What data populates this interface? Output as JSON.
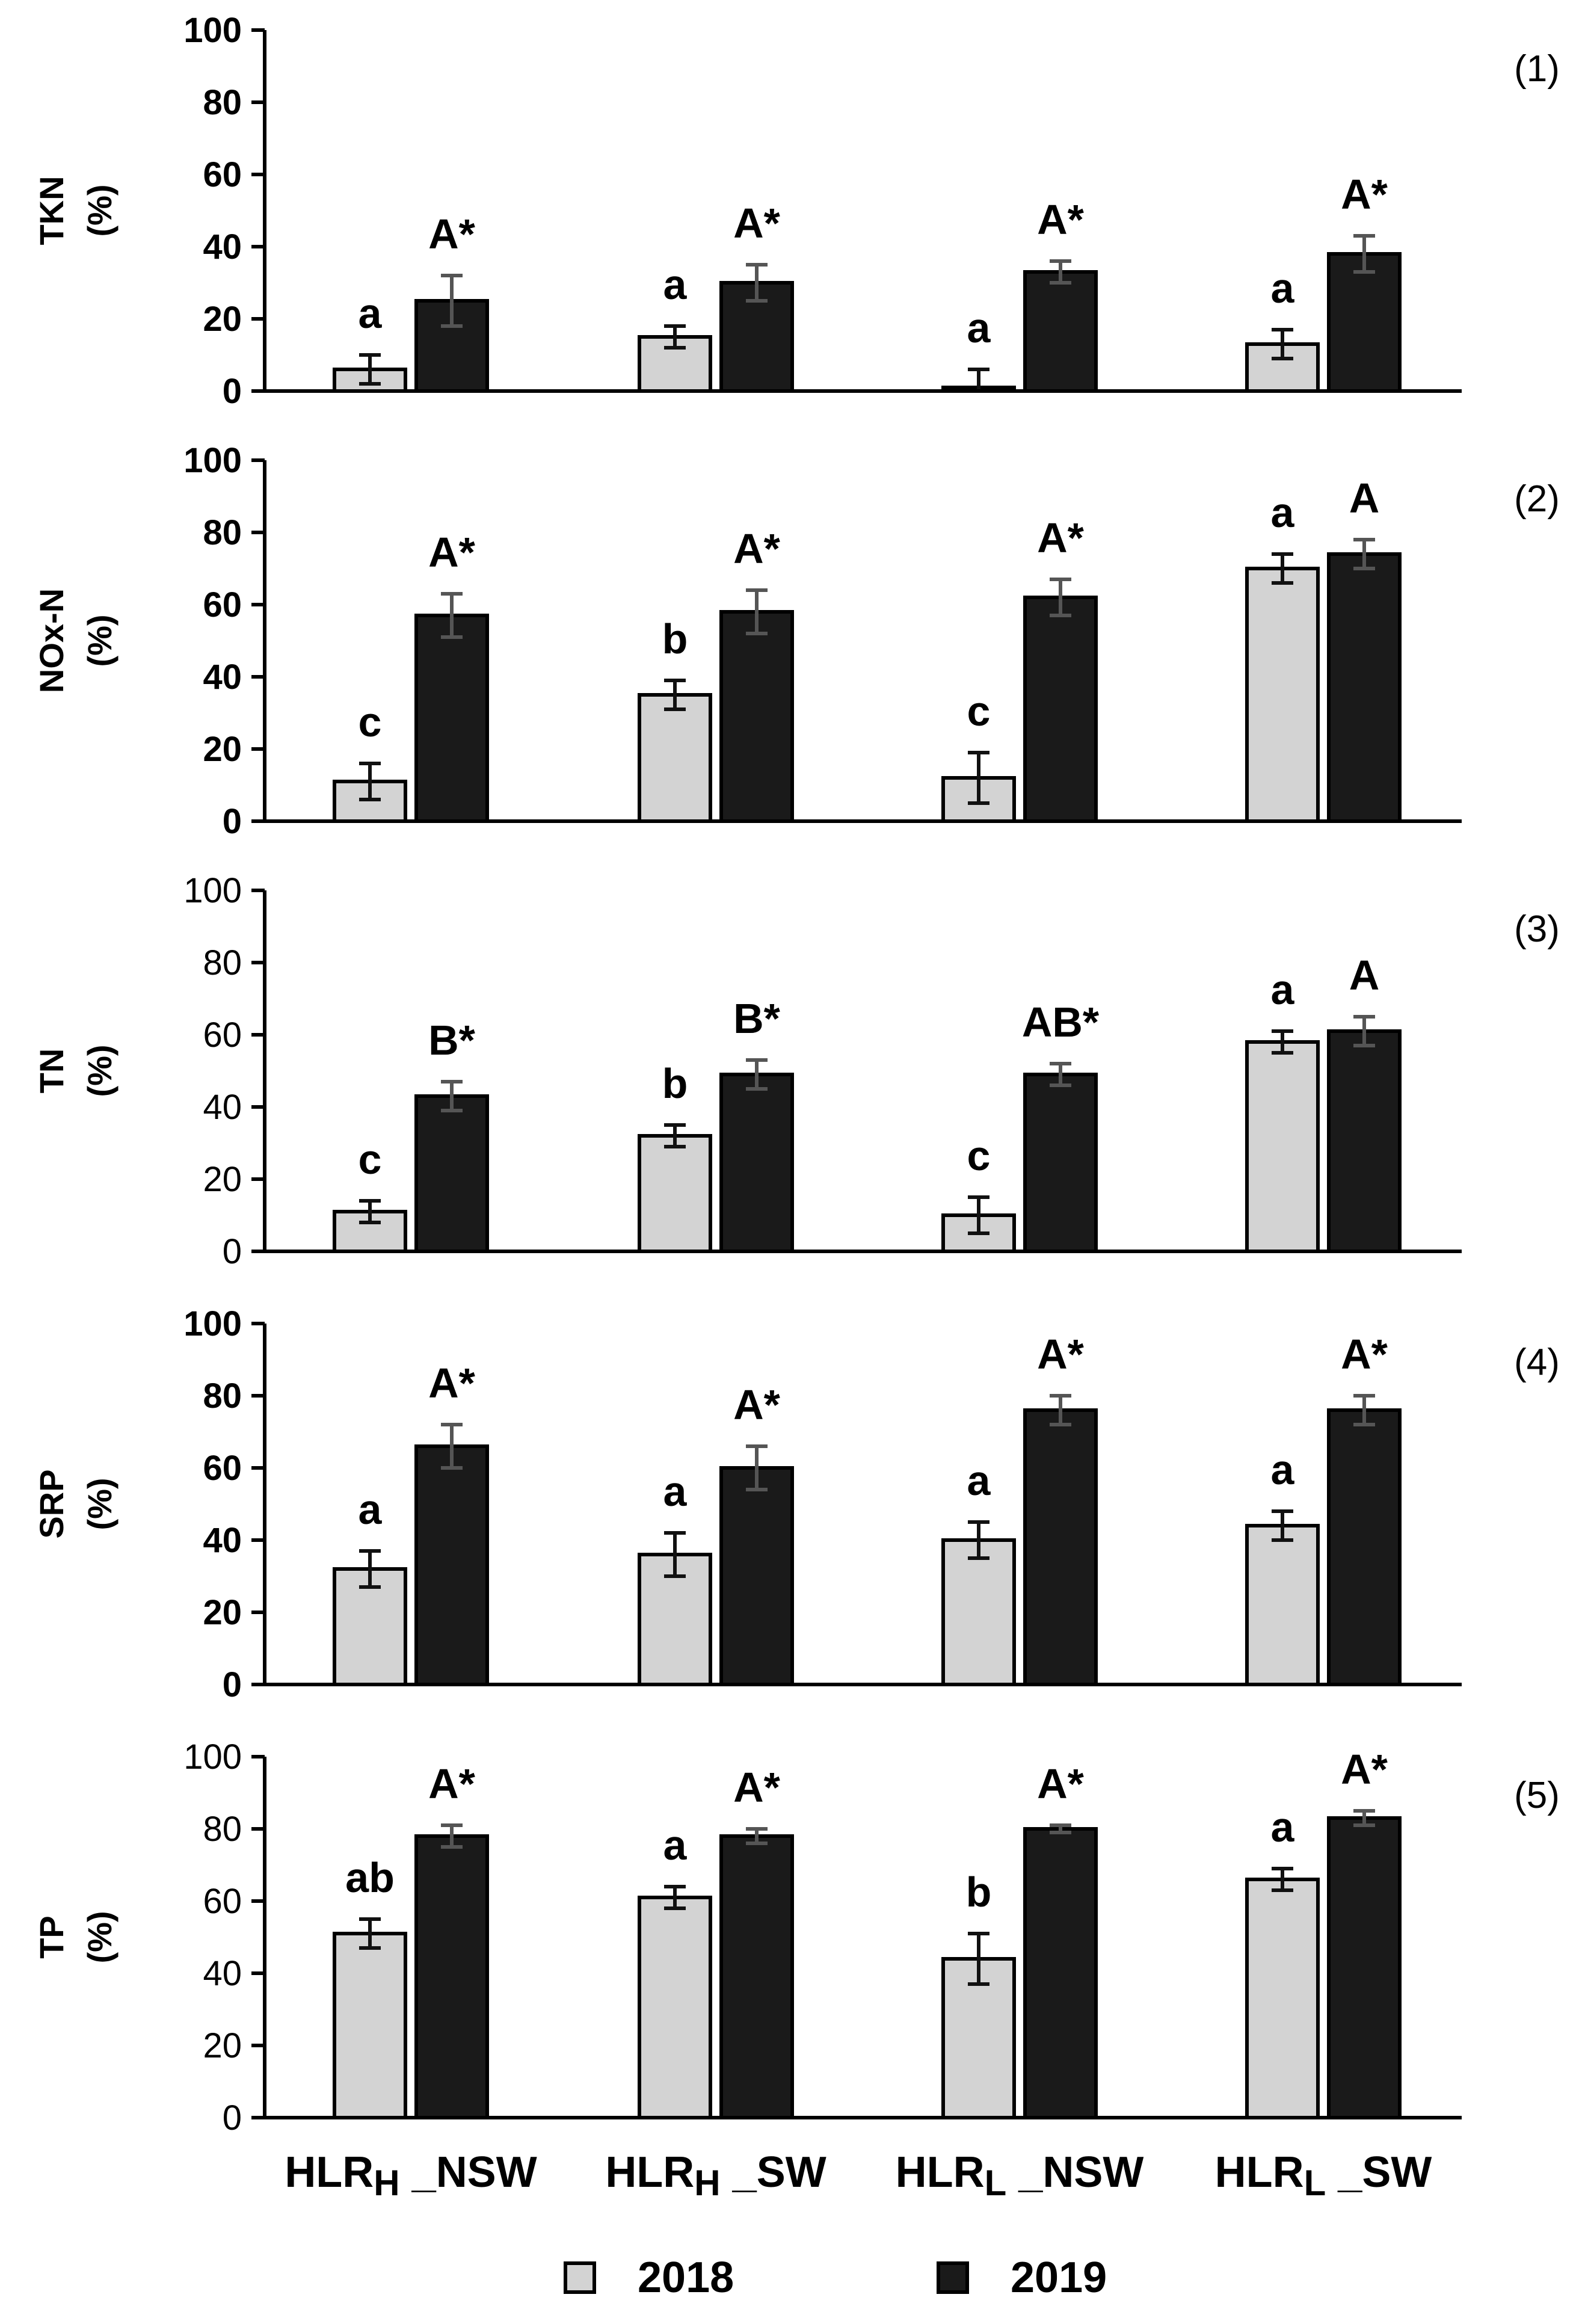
{
  "chart_data": [
    {
      "type": "bar",
      "panel_label": "(1)",
      "ylabel_line1": "TKN",
      "ylabel_line2": "(%)",
      "ylim": [
        0,
        100
      ],
      "yticks": [
        "0",
        "20",
        "40",
        "60",
        "80",
        "100"
      ],
      "bold_ticks": true,
      "categories": [
        "HLRH _NSW",
        "HLRH _SW",
        "HLRL _NSW",
        "HLRL _SW"
      ],
      "series": [
        {
          "name": "2018",
          "values": [
            6,
            15,
            1,
            13
          ],
          "errors": [
            4,
            3,
            5,
            4
          ],
          "letters": [
            "a",
            "a",
            "a",
            "a"
          ]
        },
        {
          "name": "2019",
          "values": [
            25,
            30,
            33,
            38
          ],
          "errors": [
            7,
            5,
            3,
            5
          ],
          "letters": [
            "A*",
            "A*",
            "A*",
            "A*"
          ]
        }
      ]
    },
    {
      "type": "bar",
      "panel_label": "(2)",
      "ylabel_line1": "NOx-N",
      "ylabel_line2": "(%)",
      "ylim": [
        0,
        100
      ],
      "yticks": [
        "0",
        "20",
        "40",
        "60",
        "80",
        "100"
      ],
      "bold_ticks": true,
      "categories": [
        "HLRH _NSW",
        "HLRH _SW",
        "HLRL _NSW",
        "HLRL _SW"
      ],
      "series": [
        {
          "name": "2018",
          "values": [
            11,
            35,
            12,
            70
          ],
          "errors": [
            5,
            4,
            7,
            4
          ],
          "letters": [
            "c",
            "b",
            "c",
            "a"
          ]
        },
        {
          "name": "2019",
          "values": [
            57,
            58,
            62,
            74
          ],
          "errors": [
            6,
            6,
            5,
            4
          ],
          "letters": [
            "A*",
            "A*",
            "A*",
            "A"
          ]
        }
      ]
    },
    {
      "type": "bar",
      "panel_label": "(3)",
      "ylabel_line1": "TN",
      "ylabel_line2": "(%)",
      "ylim": [
        0,
        100
      ],
      "yticks": [
        "0",
        "20",
        "40",
        "60",
        "80",
        "100"
      ],
      "bold_ticks": false,
      "categories": [
        "HLRH _NSW",
        "HLRH _SW",
        "HLRL _NSW",
        "HLRL _SW"
      ],
      "series": [
        {
          "name": "2018",
          "values": [
            11,
            32,
            10,
            58
          ],
          "errors": [
            3,
            3,
            5,
            3
          ],
          "letters": [
            "c",
            "b",
            "c",
            "a"
          ]
        },
        {
          "name": "2019",
          "values": [
            43,
            49,
            49,
            61
          ],
          "errors": [
            4,
            4,
            3,
            4
          ],
          "letters": [
            "B*",
            "B*",
            "AB*",
            "A"
          ]
        }
      ]
    },
    {
      "type": "bar",
      "panel_label": "(4)",
      "ylabel_line1": "SRP",
      "ylabel_line2": "(%)",
      "ylim": [
        0,
        100
      ],
      "yticks": [
        "0",
        "20",
        "40",
        "60",
        "80",
        "100"
      ],
      "bold_ticks": true,
      "categories": [
        "HLRH _NSW",
        "HLRH _SW",
        "HLRL _NSW",
        "HLRL _SW"
      ],
      "series": [
        {
          "name": "2018",
          "values": [
            32,
            36,
            40,
            44
          ],
          "errors": [
            5,
            6,
            5,
            4
          ],
          "letters": [
            "a",
            "a",
            "a",
            "a"
          ]
        },
        {
          "name": "2019",
          "values": [
            66,
            60,
            76,
            76
          ],
          "errors": [
            6,
            6,
            4,
            4
          ],
          "letters": [
            "A*",
            "A*",
            "A*",
            "A*"
          ]
        }
      ]
    },
    {
      "type": "bar",
      "panel_label": "(5)",
      "ylabel_line1": "TP",
      "ylabel_line2": "(%)",
      "ylim": [
        0,
        100
      ],
      "yticks": [
        "0",
        "20",
        "40",
        "60",
        "80",
        "100"
      ],
      "bold_ticks": false,
      "categories": [
        "HLRH _NSW",
        "HLRH _SW",
        "HLRL _NSW",
        "HLRL _SW"
      ],
      "series": [
        {
          "name": "2018",
          "values": [
            51,
            61,
            44,
            66
          ],
          "errors": [
            4,
            3,
            7,
            3
          ],
          "letters": [
            "ab",
            "a",
            "b",
            "a"
          ]
        },
        {
          "name": "2019",
          "values": [
            78,
            78,
            80,
            83
          ],
          "errors": [
            3,
            2,
            1,
            2
          ],
          "letters": [
            "A*",
            "A*",
            "A*",
            "A*"
          ]
        }
      ]
    }
  ],
  "x_labels": [
    {
      "main": "HLR",
      "sub": "H",
      "suffix": " _NSW"
    },
    {
      "main": "HLR",
      "sub": "H",
      "suffix": " _SW"
    },
    {
      "main": "HLR",
      "sub": "L",
      "suffix": " _NSW"
    },
    {
      "main": "HLR",
      "sub": "L",
      "suffix": " _SW"
    }
  ],
  "legend": [
    {
      "label": "2018",
      "color": "#d3d3d3"
    },
    {
      "label": "2019",
      "color": "#1a1a1a"
    }
  ],
  "colors": {
    "bar_2018": "#d3d3d3",
    "bar_2019": "#1a1a1a",
    "axis": "#000000",
    "error_bar": "#333333"
  }
}
